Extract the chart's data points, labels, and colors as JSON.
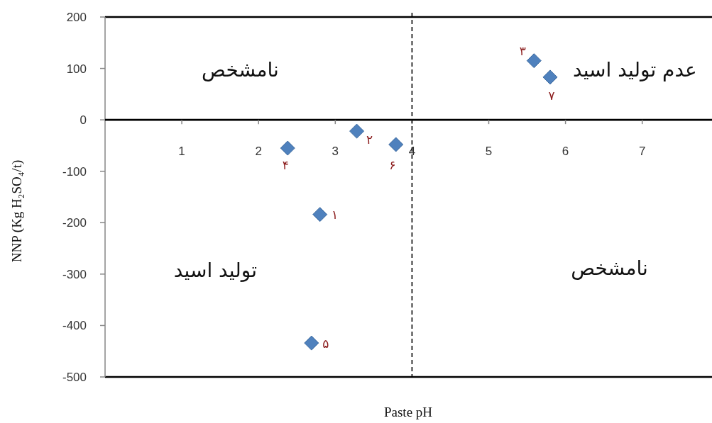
{
  "chart_data": {
    "type": "scatter",
    "xlabel": "Paste pH",
    "ylabel": "NNP (Kg H₂SO₄/t)",
    "x": [
      2.8,
      3.28,
      5.59,
      2.38,
      2.69,
      3.79,
      5.8
    ],
    "values": [
      -184,
      -22,
      115,
      -55,
      -434,
      -48,
      83
    ],
    "color": "#4f81bd",
    "marker": "diamond",
    "xlim": [
      0,
      7.9
    ],
    "ylim": [
      -500,
      200
    ],
    "xticks": [
      1,
      2,
      3,
      4,
      5,
      6,
      7
    ],
    "yticks": [
      -500,
      -400,
      -300,
      -200,
      -100,
      0,
      100,
      200
    ],
    "ref_lines": [
      {
        "axis": "x",
        "value": 4,
        "line_style": "dashed",
        "color": "#000000"
      }
    ],
    "annotations": [
      "نامشخص",
      "عدم تولید اسید",
      "تولید اسید",
      "نامشخص",
      {
        "text": "۱",
        "x": 2.8,
        "y": -184
      },
      {
        "text": "۲",
        "x": 3.28,
        "y": -22
      },
      {
        "text": "۳",
        "x": 5.59,
        "y": 115
      },
      {
        "text": "۴",
        "x": 2.38,
        "y": -55
      },
      {
        "text": "۵",
        "x": 2.69,
        "y": -434
      },
      {
        "text": "۶",
        "x": 3.79,
        "y": -48
      },
      {
        "text": "۷",
        "x": 5.8,
        "y": 83
      }
    ]
  }
}
